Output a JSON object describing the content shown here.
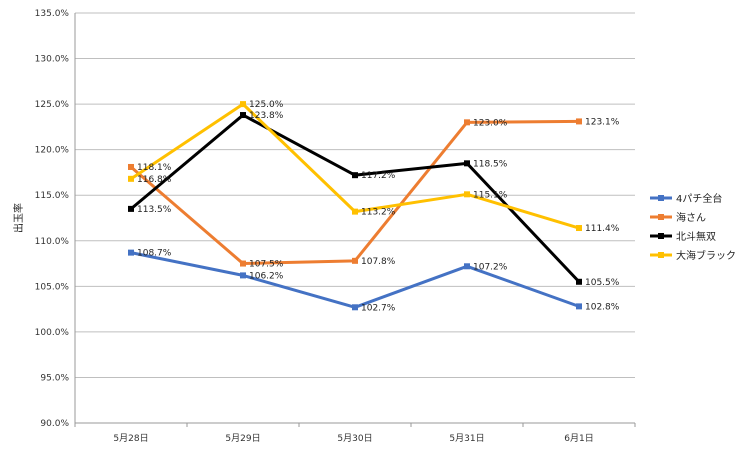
{
  "chart_data": {
    "type": "line",
    "title": "",
    "xlabel": "",
    "ylabel": "出玉率",
    "categories": [
      "5月28日",
      "5月29日",
      "5月30日",
      "5月31日",
      "6月1日"
    ],
    "ylim": [
      90.0,
      135.0
    ],
    "ytick_step": 5.0,
    "yticks": [
      "90.0%",
      "95.0%",
      "100.0%",
      "105.0%",
      "110.0%",
      "115.0%",
      "120.0%",
      "125.0%",
      "130.0%",
      "135.0%"
    ],
    "grid": true,
    "legend_position": "right",
    "series": [
      {
        "name": "4パチ全台",
        "color": "#4472C4",
        "values": [
          108.7,
          106.2,
          102.7,
          107.2,
          102.8
        ],
        "labels": [
          "108.7%",
          "106.2%",
          "102.7%",
          "107.2%",
          "102.8%"
        ]
      },
      {
        "name": "海さん",
        "color": "#ED7D31",
        "values": [
          118.1,
          107.5,
          107.8,
          123.0,
          123.1
        ],
        "labels": [
          "118.1%",
          "107.5%",
          "107.8%",
          "123.0%",
          "123.1%"
        ]
      },
      {
        "name": "北斗無双",
        "color": "#000000",
        "values": [
          113.5,
          123.8,
          117.2,
          118.5,
          105.5
        ],
        "labels": [
          "113.5%",
          "123.8%",
          "117.2%",
          "118.5%",
          "105.5%"
        ]
      },
      {
        "name": "大海ブラック",
        "color": "#FFC000",
        "values": [
          116.8,
          125.0,
          113.2,
          115.1,
          111.4
        ],
        "labels": [
          "116.8%",
          "125.0%",
          "113.2%",
          "115.1%",
          "111.4%"
        ]
      }
    ]
  }
}
